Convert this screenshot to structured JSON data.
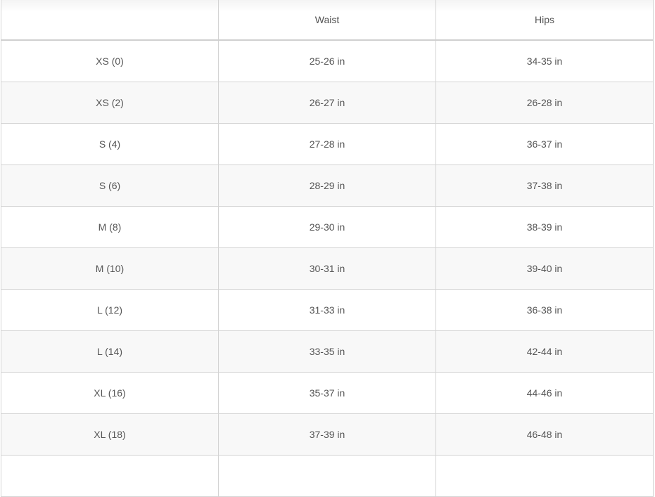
{
  "table": {
    "headers": [
      "",
      "Waist",
      "Hips"
    ],
    "rows": [
      [
        "XS (0)",
        "25-26 in",
        "34-35 in"
      ],
      [
        "XS (2)",
        "26-27 in",
        "26-28 in"
      ],
      [
        "S (4)",
        "27-28 in",
        "36-37 in"
      ],
      [
        "S (6)",
        "28-29 in",
        "37-38 in"
      ],
      [
        "M (8)",
        "29-30 in",
        "38-39 in"
      ],
      [
        "M (10)",
        "30-31 in",
        "39-40 in"
      ],
      [
        "L (12)",
        "31-33 in",
        "36-38 in"
      ],
      [
        "L (14)",
        "33-35 in",
        "42-44 in"
      ],
      [
        "XL (16)",
        "35-37 in",
        "44-46 in"
      ],
      [
        "XL (18)",
        "37-39 in",
        "46-48 in"
      ],
      [
        "",
        "",
        ""
      ]
    ]
  }
}
